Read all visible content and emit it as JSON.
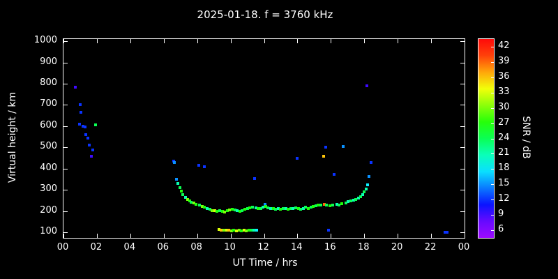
{
  "title": "2025-01-18. f = 3760 kHz",
  "colors": {
    "background": "#000000",
    "foreground": "#ffffff"
  },
  "chart_data": {
    "type": "scatter",
    "title": "2025-01-18. f = 3760 kHz",
    "xlabel": "UT Time / hrs",
    "ylabel": "Virtual height / km",
    "colorbar_label": "SNR / dB",
    "xlim": [
      0,
      24
    ],
    "ylim": [
      75,
      1010
    ],
    "grid": false,
    "x_ticks": [
      {
        "v": 0,
        "label": "00"
      },
      {
        "v": 2,
        "label": "02"
      },
      {
        "v": 4,
        "label": "04"
      },
      {
        "v": 6,
        "label": "06"
      },
      {
        "v": 8,
        "label": "08"
      },
      {
        "v": 10,
        "label": "10"
      },
      {
        "v": 12,
        "label": "12"
      },
      {
        "v": 14,
        "label": "14"
      },
      {
        "v": 16,
        "label": "16"
      },
      {
        "v": 18,
        "label": "18"
      },
      {
        "v": 20,
        "label": "20"
      },
      {
        "v": 22,
        "label": "22"
      },
      {
        "v": 24,
        "label": "00"
      }
    ],
    "y_ticks": [
      {
        "v": 100,
        "label": "100"
      },
      {
        "v": 200,
        "label": "200"
      },
      {
        "v": 300,
        "label": "300"
      },
      {
        "v": 400,
        "label": "400"
      },
      {
        "v": 500,
        "label": "500"
      },
      {
        "v": 600,
        "label": "600"
      },
      {
        "v": 700,
        "label": "700"
      },
      {
        "v": 800,
        "label": "800"
      },
      {
        "v": 900,
        "label": "900"
      },
      {
        "v": 1000,
        "label": "1000"
      }
    ],
    "colorbar": {
      "min": 4.5,
      "max": 43.5,
      "ticks": [
        6,
        9,
        12,
        15,
        18,
        21,
        24,
        27,
        30,
        33,
        36,
        39,
        42
      ],
      "snr_hue_map": "6dB=violet(276) to 42dB=red(0)"
    },
    "points": [
      [
        0.7,
        785,
        9
      ],
      [
        1.0,
        700,
        12
      ],
      [
        1.05,
        665,
        12
      ],
      [
        0.95,
        610,
        12
      ],
      [
        1.15,
        600,
        12
      ],
      [
        1.9,
        605,
        24
      ],
      [
        1.3,
        595,
        12
      ],
      [
        1.35,
        560,
        12
      ],
      [
        1.45,
        545,
        12
      ],
      [
        1.55,
        510,
        12
      ],
      [
        1.75,
        490,
        12
      ],
      [
        1.65,
        460,
        9
      ],
      [
        6.6,
        435,
        12
      ],
      [
        6.65,
        430,
        15
      ],
      [
        6.75,
        350,
        15
      ],
      [
        6.85,
        330,
        21
      ],
      [
        6.95,
        310,
        24
      ],
      [
        7.05,
        295,
        27
      ],
      [
        7.15,
        280,
        24
      ],
      [
        7.3,
        265,
        21
      ],
      [
        7.45,
        255,
        30
      ],
      [
        7.55,
        248,
        27
      ],
      [
        7.65,
        242,
        24
      ],
      [
        7.8,
        238,
        30
      ],
      [
        7.95,
        232,
        27
      ],
      [
        8.1,
        415,
        12
      ],
      [
        8.15,
        228,
        24
      ],
      [
        8.3,
        222,
        30
      ],
      [
        8.45,
        410,
        12
      ],
      [
        8.45,
        218,
        27
      ],
      [
        8.6,
        212,
        21
      ],
      [
        8.75,
        208,
        24
      ],
      [
        8.9,
        204,
        30
      ],
      [
        9.05,
        202,
        33
      ],
      [
        9.2,
        200,
        27
      ],
      [
        9.35,
        204,
        24
      ],
      [
        9.5,
        200,
        27
      ],
      [
        9.65,
        198,
        30
      ],
      [
        9.8,
        202,
        27
      ],
      [
        9.95,
        206,
        30
      ],
      [
        10.1,
        210,
        27
      ],
      [
        10.25,
        206,
        24
      ],
      [
        10.4,
        202,
        21
      ],
      [
        10.55,
        200,
        27
      ],
      [
        10.7,
        204,
        24
      ],
      [
        10.85,
        208,
        27
      ],
      [
        11.0,
        212,
        24
      ],
      [
        11.15,
        216,
        27
      ],
      [
        11.3,
        220,
        24
      ],
      [
        11.45,
        355,
        12
      ],
      [
        11.5,
        216,
        21
      ],
      [
        11.65,
        212,
        27
      ],
      [
        11.8,
        214,
        24
      ],
      [
        11.95,
        218,
        21
      ],
      [
        12.05,
        232,
        15
      ],
      [
        12.1,
        222,
        27
      ],
      [
        12.25,
        216,
        24
      ],
      [
        12.4,
        212,
        21
      ],
      [
        12.55,
        214,
        27
      ],
      [
        12.7,
        210,
        24
      ],
      [
        12.85,
        214,
        21
      ],
      [
        13.0,
        210,
        27
      ],
      [
        13.15,
        214,
        24
      ],
      [
        13.3,
        212,
        21
      ],
      [
        13.45,
        210,
        27
      ],
      [
        13.6,
        214,
        24
      ],
      [
        13.75,
        212,
        21
      ],
      [
        13.9,
        216,
        24
      ],
      [
        14.0,
        450,
        12
      ],
      [
        14.05,
        212,
        27
      ],
      [
        14.2,
        210,
        24
      ],
      [
        14.35,
        214,
        21
      ],
      [
        14.5,
        218,
        24
      ],
      [
        14.65,
        214,
        27
      ],
      [
        14.8,
        218,
        24
      ],
      [
        14.95,
        222,
        27
      ],
      [
        15.1,
        226,
        24
      ],
      [
        15.25,
        230,
        27
      ],
      [
        15.4,
        228,
        24
      ],
      [
        15.55,
        460,
        36
      ],
      [
        15.6,
        232,
        39
      ],
      [
        15.7,
        500,
        12
      ],
      [
        15.75,
        230,
        24
      ],
      [
        15.85,
        112,
        12
      ],
      [
        15.95,
        226,
        27
      ],
      [
        16.1,
        230,
        24
      ],
      [
        16.2,
        375,
        12
      ],
      [
        16.35,
        234,
        21
      ],
      [
        16.5,
        230,
        24
      ],
      [
        16.65,
        236,
        27
      ],
      [
        16.75,
        505,
        15
      ],
      [
        16.9,
        240,
        24
      ],
      [
        17.05,
        244,
        21
      ],
      [
        17.2,
        248,
        24
      ],
      [
        17.35,
        252,
        21
      ],
      [
        17.5,
        256,
        24
      ],
      [
        17.65,
        262,
        21
      ],
      [
        17.8,
        268,
        24
      ],
      [
        17.9,
        278,
        21
      ],
      [
        18.0,
        290,
        24
      ],
      [
        18.1,
        305,
        21
      ],
      [
        18.15,
        790,
        9
      ],
      [
        18.2,
        325,
        18
      ],
      [
        18.3,
        365,
        15
      ],
      [
        18.4,
        430,
        12
      ],
      [
        9.3,
        115,
        33
      ],
      [
        9.45,
        112,
        36
      ],
      [
        9.6,
        110,
        30
      ],
      [
        9.75,
        112,
        33
      ],
      [
        9.9,
        110,
        36
      ],
      [
        10.05,
        108,
        30
      ],
      [
        10.2,
        110,
        27
      ],
      [
        10.35,
        108,
        33
      ],
      [
        10.5,
        110,
        30
      ],
      [
        10.65,
        108,
        27
      ],
      [
        10.8,
        110,
        33
      ],
      [
        10.95,
        108,
        30
      ],
      [
        11.1,
        110,
        27
      ],
      [
        11.25,
        112,
        24
      ],
      [
        11.4,
        110,
        21
      ],
      [
        11.55,
        112,
        18
      ],
      [
        22.85,
        100,
        12
      ],
      [
        22.95,
        100,
        12
      ]
    ]
  }
}
